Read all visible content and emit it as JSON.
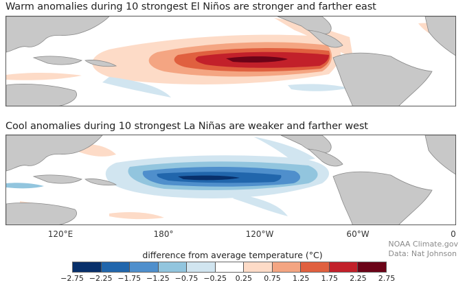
{
  "panels": [
    {
      "title": "Warm anomalies during 10 strongest El Niños are stronger and farther east",
      "type": "el-nino"
    },
    {
      "title": "Cool anomalies during 10 strongest La Niñas are weaker and farther west",
      "type": "la-nina"
    }
  ],
  "x_axis": {
    "ticks": [
      "120°E",
      "180°",
      "120°W",
      "60°W",
      "0"
    ]
  },
  "legend": {
    "title": "difference from average temperature (°C)",
    "colors": [
      "#08306b",
      "#2166ac",
      "#4f8fcc",
      "#92c5de",
      "#d1e5f0",
      "#ffffff",
      "#fddbc7",
      "#f4a582",
      "#e0603f",
      "#c2202a",
      "#6b0317"
    ],
    "tick_labels": [
      "−2.75",
      "−2.25",
      "−1.75",
      "−1.25",
      "−0.75",
      "−0.25",
      "0.25",
      "0.75",
      "1.25",
      "1.75",
      "2.25",
      "2.75"
    ]
  },
  "credit": {
    "line1": "NOAA Climate.gov",
    "line2": "Data: Nat Johnson"
  },
  "colors": {
    "land": "#c8c8c8",
    "coast": "#888888"
  }
}
